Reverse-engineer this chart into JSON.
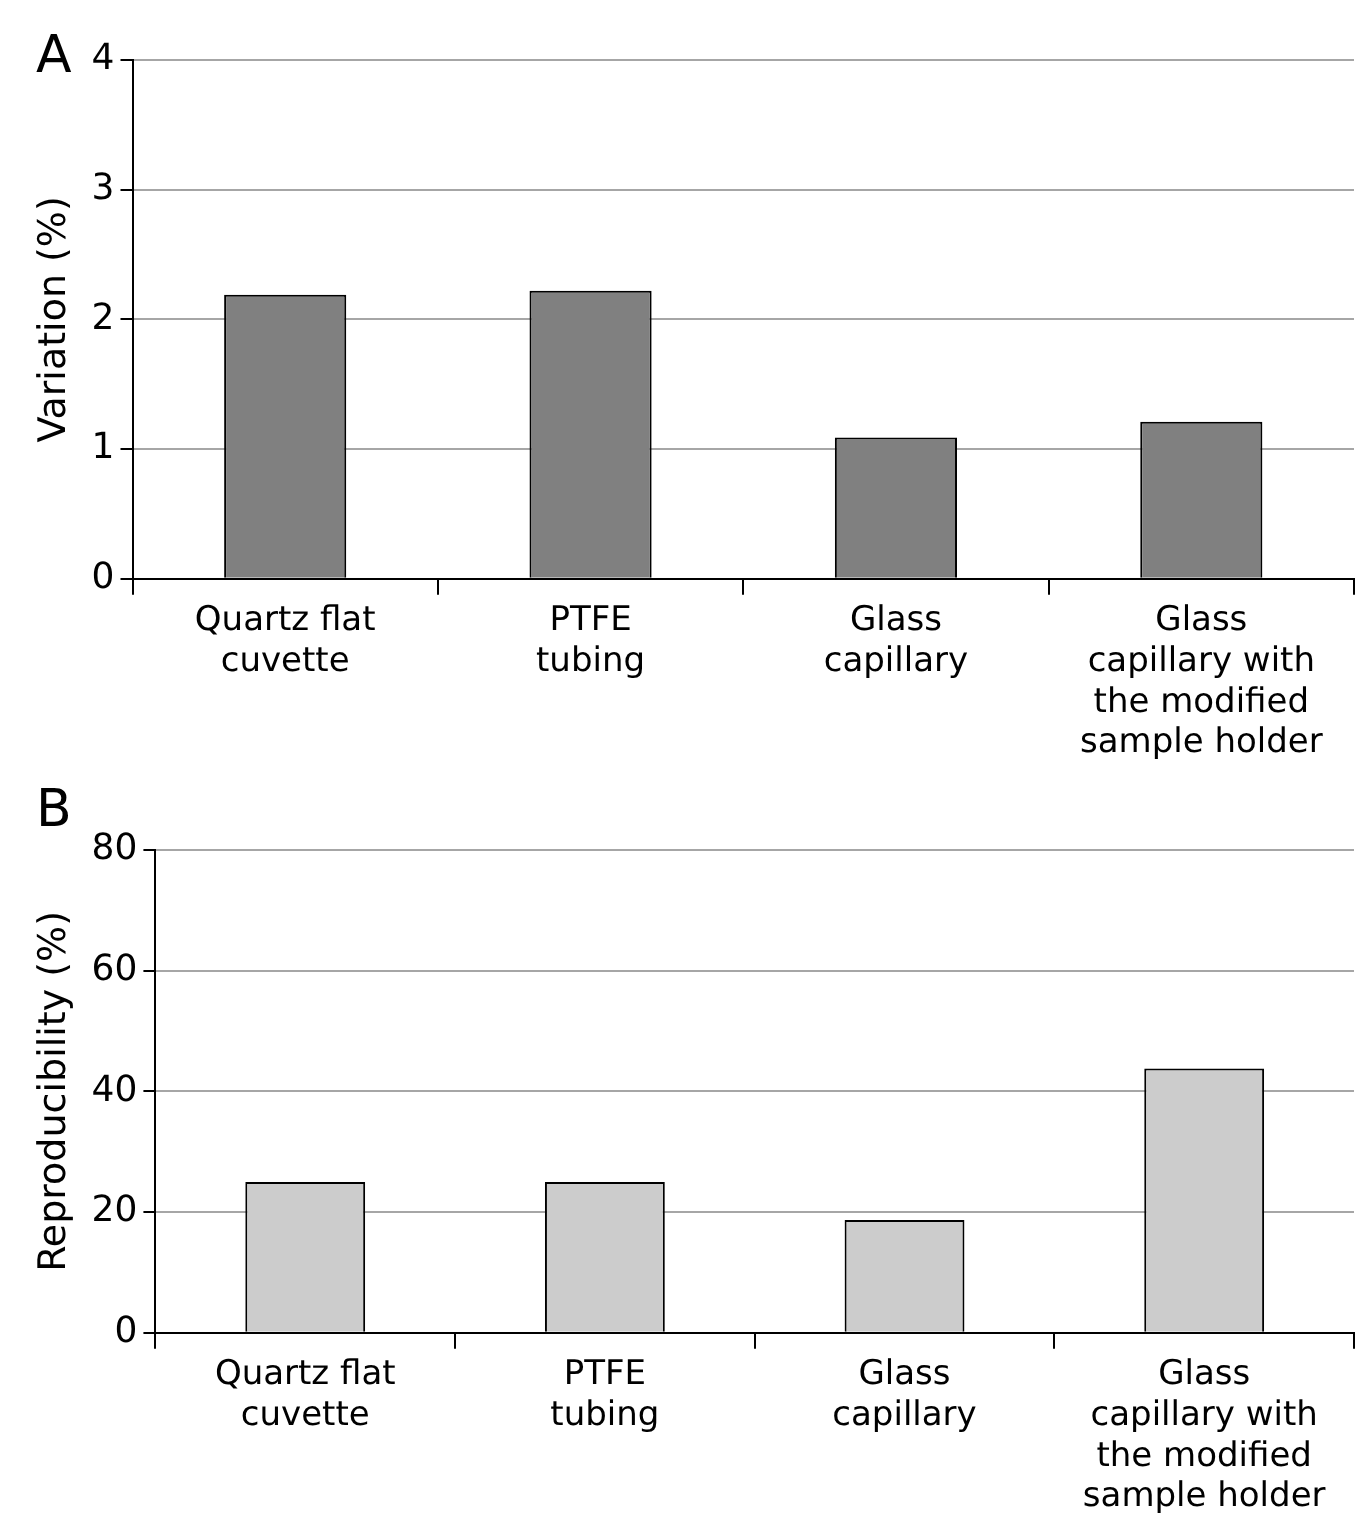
{
  "chart_data": [
    {
      "type": "bar",
      "annotations": [
        "A"
      ],
      "ylabel": "Variation (%)",
      "categories": [
        "Quartz flat\ncuvette",
        "PTFE\ntubing",
        "Glass\ncapillary",
        "Glass\ncapillary with\nthe modified\nsample holder"
      ],
      "values": [
        2.19,
        2.22,
        1.09,
        1.21
      ],
      "color": "#808080",
      "ylim": [
        0,
        4
      ],
      "yticks": [
        0,
        1,
        2,
        3,
        4
      ],
      "grid": "y"
    },
    {
      "type": "bar",
      "annotations": [
        "B"
      ],
      "ylabel": "Reproducibility (%)",
      "categories": [
        "Quartz flat\ncuvette",
        "PTFE\ntubing",
        "Glass\ncapillary",
        "Glass\ncapillary with\nthe modified\nsample holder"
      ],
      "values": [
        25,
        25,
        18.7,
        43.8
      ],
      "color": "#cccccc",
      "ylim": [
        0,
        80
      ],
      "yticks": [
        0,
        20,
        40,
        60,
        80
      ],
      "grid": "y"
    }
  ]
}
